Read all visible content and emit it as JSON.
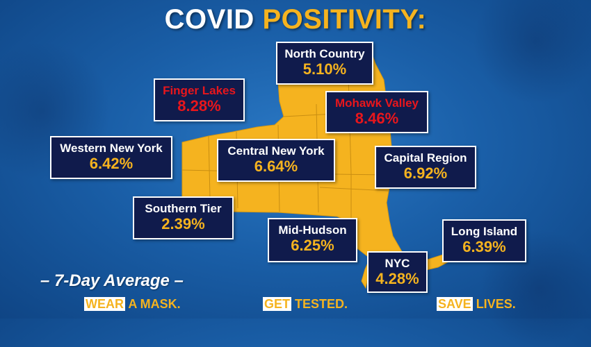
{
  "title": {
    "part1": "COVID",
    "part2": "POSITIVITY:"
  },
  "regions": [
    {
      "name": "North Country",
      "pct": "5.10%",
      "alert": false
    },
    {
      "name": "Finger Lakes",
      "pct": "8.28%",
      "alert": true
    },
    {
      "name": "Mohawk Valley",
      "pct": "8.46%",
      "alert": true
    },
    {
      "name": "Western New York",
      "pct": "6.42%",
      "alert": false
    },
    {
      "name": "Central New York",
      "pct": "6.64%",
      "alert": false
    },
    {
      "name": "Capital Region",
      "pct": "6.92%",
      "alert": false
    },
    {
      "name": "Southern Tier",
      "pct": "2.39%",
      "alert": false
    },
    {
      "name": "Mid-Hudson",
      "pct": "6.25%",
      "alert": false
    },
    {
      "name": "Long Island",
      "pct": "6.39%",
      "alert": false
    },
    {
      "name": "NYC",
      "pct": "4.28%",
      "alert": false
    }
  ],
  "subtitle": "– 7-Day Average –",
  "slogans": [
    {
      "highlight": "WEAR",
      "rest": " A MASK."
    },
    {
      "highlight": "GET",
      "rest": " TESTED."
    },
    {
      "highlight": "SAVE",
      "rest": " LIVES."
    }
  ],
  "colors": {
    "background": "#1a5fa8",
    "map_fill": "#f5b31f",
    "box_fill": "#101b4c",
    "accent": "#f5b31f",
    "alert": "#e8161c"
  }
}
